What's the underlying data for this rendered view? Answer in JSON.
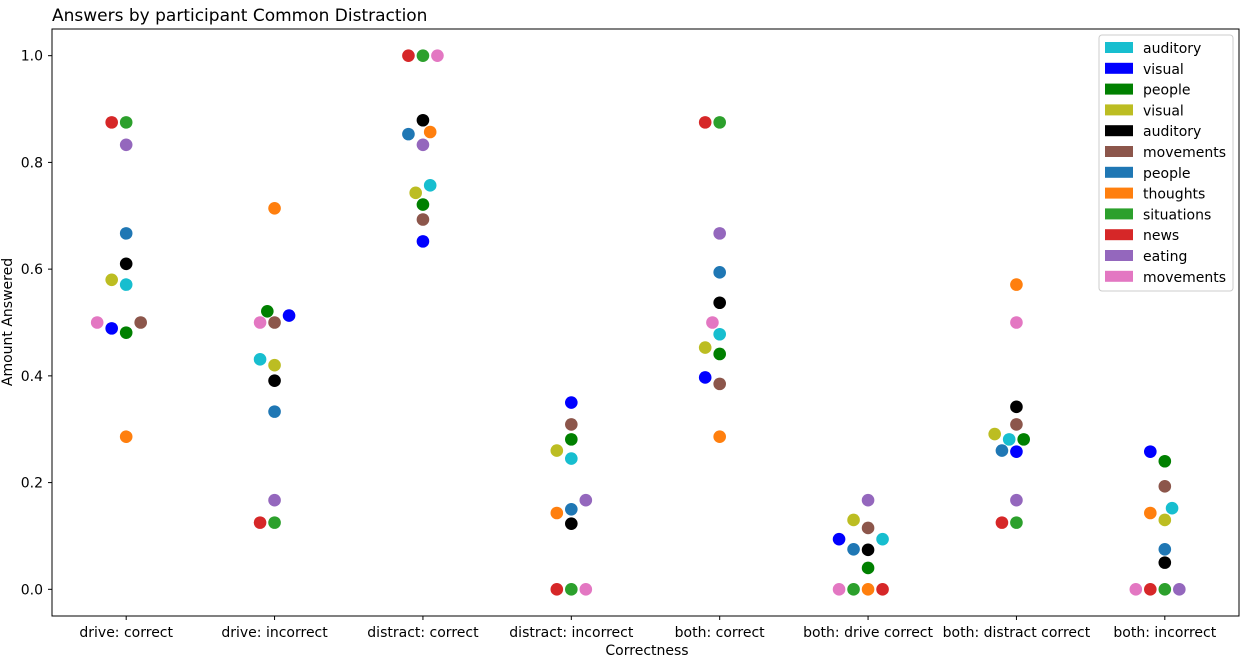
{
  "chart_data": {
    "type": "scatter",
    "title": "Answers by participant Common Distraction",
    "xlabel": "Correctness",
    "ylabel": "Amount Answered",
    "ylim": [
      -0.05,
      1.05
    ],
    "yticks": [
      "0.0",
      "0.2",
      "0.4",
      "0.6",
      "0.8",
      "1.0"
    ],
    "categories": [
      "drive: correct",
      "drive: incorrect",
      "distract: correct",
      "distract: incorrect",
      "both: correct",
      "both: drive correct",
      "both: distract correct",
      "both: incorrect"
    ],
    "legend_position": "top-right",
    "grid": false,
    "series": [
      {
        "name": "auditory",
        "color": "#17becf",
        "values": [
          0.571,
          0.431,
          0.757,
          0.245,
          0.478,
          0.094,
          0.281,
          0.152
        ]
      },
      {
        "name": " visual",
        "color": "#0000ff",
        "values": [
          0.489,
          0.513,
          0.652,
          0.35,
          0.397,
          0.094,
          0.258,
          0.258
        ]
      },
      {
        "name": " people",
        "color": "#008000",
        "values": [
          0.481,
          0.521,
          0.721,
          0.281,
          0.441,
          0.04,
          0.281,
          0.24
        ]
      },
      {
        "name": "visual",
        "color": "#bcbd22",
        "values": [
          0.58,
          0.42,
          0.743,
          0.26,
          0.453,
          0.13,
          0.291,
          0.13
        ]
      },
      {
        "name": " auditory",
        "color": "#000000",
        "values": [
          0.61,
          0.391,
          0.879,
          0.123,
          0.537,
          0.074,
          0.342,
          0.05
        ]
      },
      {
        "name": " movements",
        "color": "#8c564b",
        "values": [
          0.5,
          0.5,
          0.693,
          0.309,
          0.385,
          0.115,
          0.309,
          0.193
        ]
      },
      {
        "name": "people",
        "color": "#1f77b4",
        "values": [
          0.667,
          0.333,
          0.853,
          0.15,
          0.594,
          0.075,
          0.26,
          0.075
        ]
      },
      {
        "name": " thoughts",
        "color": "#ff7f0e",
        "values": [
          0.286,
          0.714,
          0.857,
          0.143,
          0.286,
          0.0,
          0.571,
          0.143
        ]
      },
      {
        "name": "situations",
        "color": "#2ca02c",
        "values": [
          0.875,
          0.125,
          1.0,
          0.0,
          0.875,
          0.0,
          0.125,
          0.0
        ]
      },
      {
        "name": " news",
        "color": "#d62728",
        "values": [
          0.875,
          0.125,
          1.0,
          0.0,
          0.875,
          0.0,
          0.125,
          0.0
        ]
      },
      {
        "name": " eating",
        "color": "#9467bd",
        "values": [
          0.833,
          0.167,
          0.833,
          0.167,
          0.667,
          0.167,
          0.167,
          0.0
        ]
      },
      {
        "name": "movements",
        "color": "#e377c2",
        "values": [
          0.5,
          0.5,
          1.0,
          0.0,
          0.5,
          0.0,
          0.5,
          0.0
        ]
      }
    ]
  }
}
